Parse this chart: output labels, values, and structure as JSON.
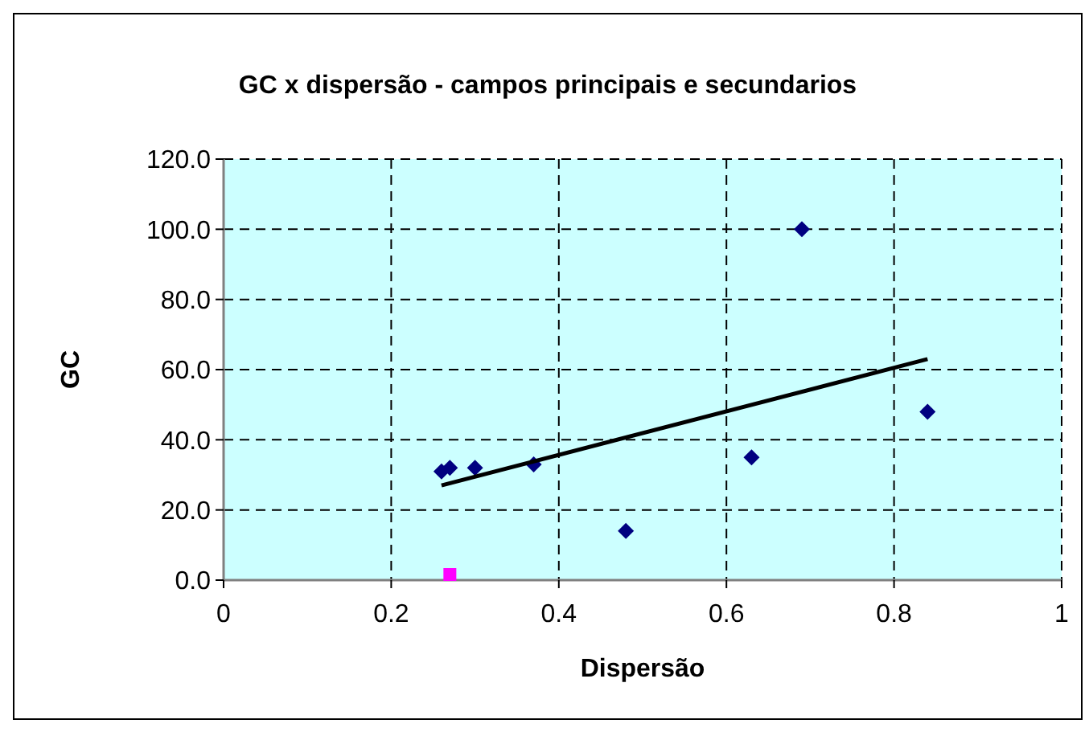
{
  "chart_data": {
    "type": "scatter",
    "title": "GC x dispersão - campos principais e secundarios",
    "xlabel": "Dispersão",
    "ylabel": "GC",
    "xlim": [
      0,
      1
    ],
    "xticks": [
      0,
      0.2,
      0.4,
      0.6,
      0.8,
      1
    ],
    "ylim": [
      0,
      120
    ],
    "yticks": [
      {
        "value": 0,
        "label": "0.0"
      },
      {
        "value": 20,
        "label": "20.0"
      },
      {
        "value": 40,
        "label": "40.0"
      },
      {
        "value": 60,
        "label": "60.0"
      },
      {
        "value": 80,
        "label": "80.0"
      },
      {
        "value": 100,
        "label": "100.0"
      },
      {
        "value": 120,
        "label": "120.0"
      }
    ],
    "grid": true,
    "series": [
      {
        "color": "#000080",
        "marker": "diamond",
        "x": [
          0.26,
          0.27,
          0.3,
          0.37,
          0.48,
          0.63,
          0.69,
          0.84
        ],
        "values": [
          31,
          32,
          32,
          33,
          14,
          35,
          100,
          48
        ]
      },
      {
        "color": "#ff00ff",
        "marker": "square",
        "x": [
          0.27
        ],
        "values": [
          1.6
        ]
      },
      {
        "type": "line",
        "color": "#000000",
        "marker": "none",
        "x": [
          0.26,
          0.84
        ],
        "values": [
          27,
          63
        ]
      }
    ]
  }
}
